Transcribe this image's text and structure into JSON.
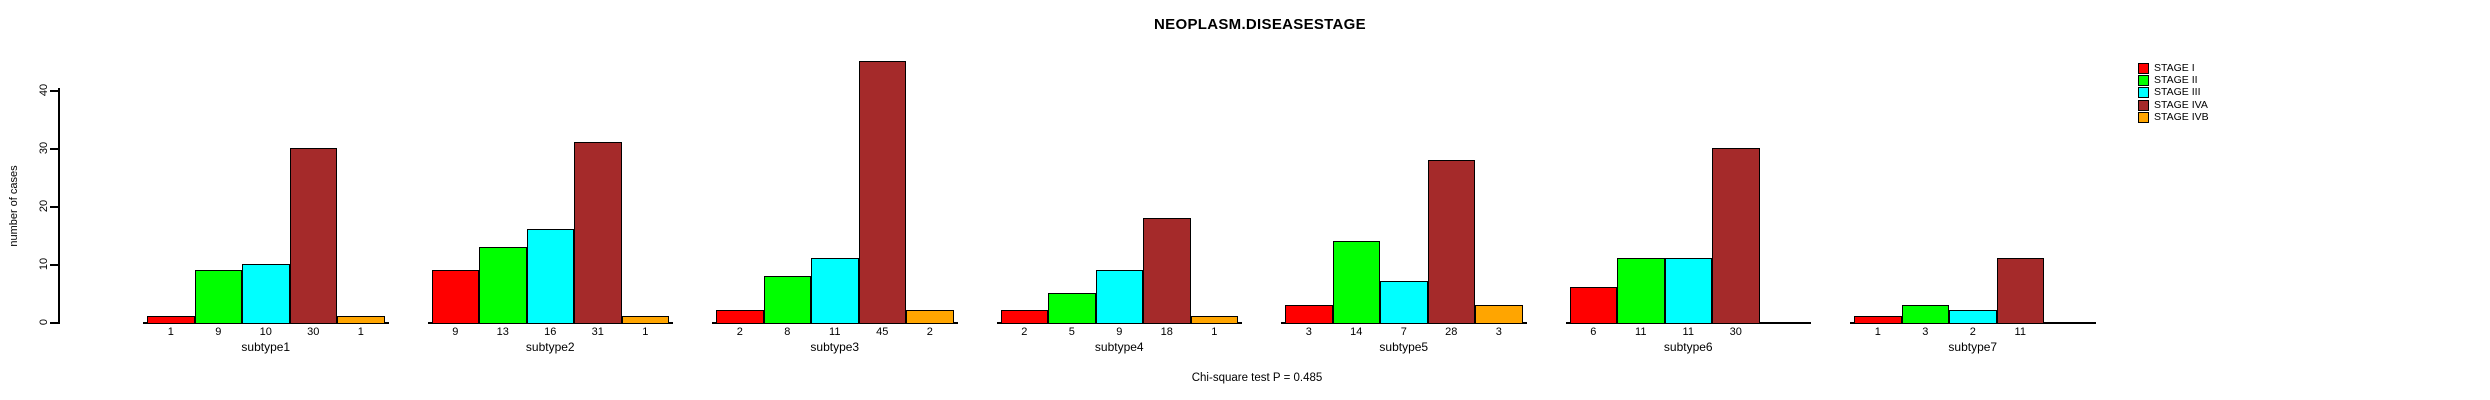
{
  "chart": {
    "title": "NEOPLASM.DISEASESTAGE",
    "y_axis_label": "number of cases",
    "annotation": "Chi-square test P = 0.485"
  },
  "legend": {
    "entries": [
      {
        "label": "STAGE I",
        "color": "#FF0000"
      },
      {
        "label": "STAGE II",
        "color": "#00FF00"
      },
      {
        "label": "STAGE III",
        "color": "#00FFFF"
      },
      {
        "label": "STAGE IVA",
        "color": "#A52A2A"
      },
      {
        "label": "STAGE IVB",
        "color": "#FFA500"
      }
    ]
  },
  "chart_data": {
    "type": "bar",
    "title": "NEOPLASM.DISEASESTAGE",
    "xlabel": "",
    "ylabel": "number of cases",
    "ylim": [
      0,
      46
    ],
    "yticks": [
      0,
      10,
      20,
      30,
      40
    ],
    "grid": false,
    "legend_position": "top-right",
    "bar_value_labels": true,
    "annotation": "Chi-square test P = 0.485",
    "categories": [
      "subtype1",
      "subtype2",
      "subtype3",
      "subtype4",
      "subtype5",
      "subtype6",
      "subtype7"
    ],
    "series": [
      {
        "name": "STAGE I",
        "color": "#FF0000",
        "values": [
          1,
          9,
          2,
          2,
          3,
          6,
          1
        ]
      },
      {
        "name": "STAGE II",
        "color": "#00FF00",
        "values": [
          9,
          13,
          8,
          5,
          14,
          11,
          3
        ]
      },
      {
        "name": "STAGE III",
        "color": "#00FFFF",
        "values": [
          10,
          16,
          11,
          9,
          7,
          11,
          2
        ]
      },
      {
        "name": "STAGE IVA",
        "color": "#A52A2A",
        "values": [
          30,
          31,
          45,
          18,
          28,
          30,
          11
        ]
      },
      {
        "name": "STAGE IVB",
        "color": "#FFA500",
        "values": [
          1,
          1,
          2,
          1,
          3,
          null,
          null
        ]
      }
    ]
  }
}
